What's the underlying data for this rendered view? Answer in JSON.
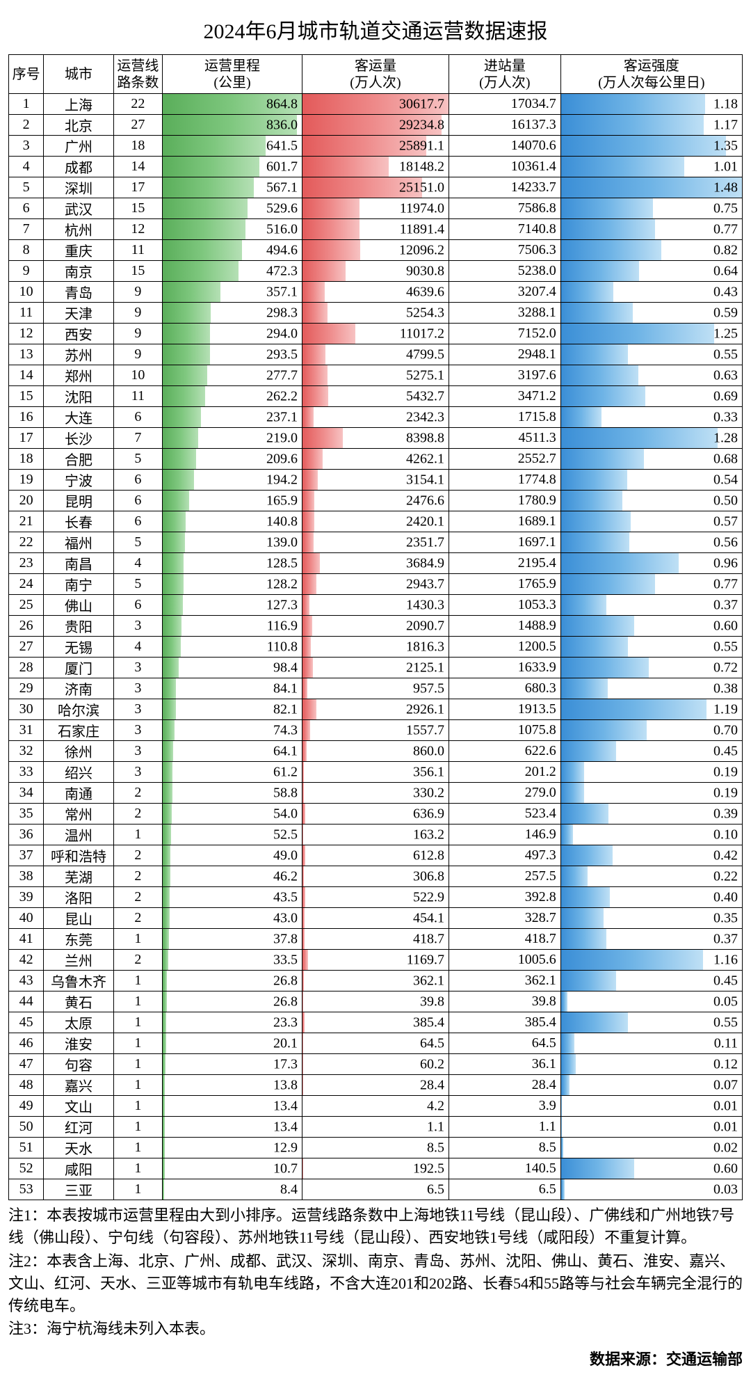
{
  "title": "2024年6月城市轨道交通运营数据速报",
  "columns": [
    "序号",
    "城市",
    "运营线\n路条数",
    "运营里程\n(公里)",
    "客运量\n(万人次)",
    "进站量\n(万人次)",
    "客运强度\n(万人次每公里日)"
  ],
  "bar_colors": {
    "green": "#5aae5a",
    "red": "#e35a5a",
    "blue": "#3a8ed6"
  },
  "max": {
    "mileage": 864.8,
    "passengers": 30617.7,
    "intensity": 1.48
  },
  "rows": [
    {
      "n": 1,
      "city": "上海",
      "lines": 22,
      "mileage": 864.8,
      "pass": 30617.7,
      "entry": "17034.7",
      "int": 1.18
    },
    {
      "n": 2,
      "city": "北京",
      "lines": 27,
      "mileage": 836.0,
      "pass": 29234.8,
      "entry": "16137.3",
      "int": 1.17
    },
    {
      "n": 3,
      "city": "广州",
      "lines": 18,
      "mileage": 641.5,
      "pass": 25891.1,
      "entry": "14070.6",
      "int": 1.35
    },
    {
      "n": 4,
      "city": "成都",
      "lines": 14,
      "mileage": 601.7,
      "pass": 18148.2,
      "entry": "10361.4",
      "int": 1.01
    },
    {
      "n": 5,
      "city": "深圳",
      "lines": 17,
      "mileage": 567.1,
      "pass": 25151.0,
      "entry": "14233.7",
      "int": 1.48
    },
    {
      "n": 6,
      "city": "武汉",
      "lines": 15,
      "mileage": 529.6,
      "pass": 11974.0,
      "entry": "7586.8",
      "int": 0.75
    },
    {
      "n": 7,
      "city": "杭州",
      "lines": 12,
      "mileage": 516.0,
      "pass": 11891.4,
      "entry": "7140.8",
      "int": 0.77
    },
    {
      "n": 8,
      "city": "重庆",
      "lines": 11,
      "mileage": 494.6,
      "pass": 12096.2,
      "entry": "7506.3",
      "int": 0.82
    },
    {
      "n": 9,
      "city": "南京",
      "lines": 15,
      "mileage": 472.3,
      "pass": 9030.8,
      "entry": "5238.0",
      "int": 0.64
    },
    {
      "n": 10,
      "city": "青岛",
      "lines": 9,
      "mileage": 357.1,
      "pass": 4639.6,
      "entry": "3207.4",
      "int": 0.43
    },
    {
      "n": 11,
      "city": "天津",
      "lines": 9,
      "mileage": 298.3,
      "pass": 5254.3,
      "entry": "3288.1",
      "int": 0.59
    },
    {
      "n": 12,
      "city": "西安",
      "lines": 9,
      "mileage": 294.0,
      "pass": 11017.2,
      "entry": "7152.0",
      "int": 1.25
    },
    {
      "n": 13,
      "city": "苏州",
      "lines": 9,
      "mileage": 293.5,
      "pass": 4799.5,
      "entry": "2948.1",
      "int": 0.55
    },
    {
      "n": 14,
      "city": "郑州",
      "lines": 10,
      "mileage": 277.7,
      "pass": 5275.1,
      "entry": "3197.6",
      "int": 0.63
    },
    {
      "n": 15,
      "city": "沈阳",
      "lines": 11,
      "mileage": 262.2,
      "pass": 5432.7,
      "entry": "3471.2",
      "int": 0.69
    },
    {
      "n": 16,
      "city": "大连",
      "lines": 6,
      "mileage": 237.1,
      "pass": 2342.3,
      "entry": "1715.8",
      "int": 0.33
    },
    {
      "n": 17,
      "city": "长沙",
      "lines": 7,
      "mileage": 219.0,
      "pass": 8398.8,
      "entry": "4511.3",
      "int": 1.28
    },
    {
      "n": 18,
      "city": "合肥",
      "lines": 5,
      "mileage": 209.6,
      "pass": 4262.1,
      "entry": "2552.7",
      "int": 0.68
    },
    {
      "n": 19,
      "city": "宁波",
      "lines": 6,
      "mileage": 194.2,
      "pass": 3154.1,
      "entry": "1774.8",
      "int": 0.54
    },
    {
      "n": 20,
      "city": "昆明",
      "lines": 6,
      "mileage": 165.9,
      "pass": 2476.6,
      "entry": "1780.9",
      "int": 0.5
    },
    {
      "n": 21,
      "city": "长春",
      "lines": 6,
      "mileage": 140.8,
      "pass": 2420.1,
      "entry": "1689.1",
      "int": 0.57
    },
    {
      "n": 22,
      "city": "福州",
      "lines": 5,
      "mileage": 139.0,
      "pass": 2351.7,
      "entry": "1697.1",
      "int": 0.56
    },
    {
      "n": 23,
      "city": "南昌",
      "lines": 4,
      "mileage": 128.5,
      "pass": 3684.9,
      "entry": "2195.4",
      "int": 0.96
    },
    {
      "n": 24,
      "city": "南宁",
      "lines": 5,
      "mileage": 128.2,
      "pass": 2943.7,
      "entry": "1765.9",
      "int": 0.77
    },
    {
      "n": 25,
      "city": "佛山",
      "lines": 6,
      "mileage": 127.3,
      "pass": 1430.3,
      "entry": "1053.3",
      "int": 0.37
    },
    {
      "n": 26,
      "city": "贵阳",
      "lines": 3,
      "mileage": 116.9,
      "pass": 2090.7,
      "entry": "1488.9",
      "int": 0.6
    },
    {
      "n": 27,
      "city": "无锡",
      "lines": 4,
      "mileage": 110.8,
      "pass": 1816.3,
      "entry": "1200.5",
      "int": 0.55
    },
    {
      "n": 28,
      "city": "厦门",
      "lines": 3,
      "mileage": 98.4,
      "pass": 2125.1,
      "entry": "1633.9",
      "int": 0.72
    },
    {
      "n": 29,
      "city": "济南",
      "lines": 3,
      "mileage": 84.1,
      "pass": 957.5,
      "entry": "680.3",
      "int": 0.38
    },
    {
      "n": 30,
      "city": "哈尔滨",
      "lines": 3,
      "mileage": 82.1,
      "pass": 2926.1,
      "entry": "1913.5",
      "int": 1.19
    },
    {
      "n": 31,
      "city": "石家庄",
      "lines": 3,
      "mileage": 74.3,
      "pass": 1557.7,
      "entry": "1075.8",
      "int": 0.7
    },
    {
      "n": 32,
      "city": "徐州",
      "lines": 3,
      "mileage": 64.1,
      "pass": 860.0,
      "entry": "622.6",
      "int": 0.45
    },
    {
      "n": 33,
      "city": "绍兴",
      "lines": 3,
      "mileage": 61.2,
      "pass": 356.1,
      "entry": "201.2",
      "int": 0.19
    },
    {
      "n": 34,
      "city": "南通",
      "lines": 2,
      "mileage": 58.8,
      "pass": 330.2,
      "entry": "279.0",
      "int": 0.19
    },
    {
      "n": 35,
      "city": "常州",
      "lines": 2,
      "mileage": 54.0,
      "pass": 636.9,
      "entry": "523.4",
      "int": 0.39
    },
    {
      "n": 36,
      "city": "温州",
      "lines": 1,
      "mileage": 52.5,
      "pass": 163.2,
      "entry": "146.9",
      "int": 0.1
    },
    {
      "n": 37,
      "city": "呼和浩特",
      "lines": 2,
      "mileage": 49.0,
      "pass": 612.8,
      "entry": "497.3",
      "int": 0.42
    },
    {
      "n": 38,
      "city": "芜湖",
      "lines": 2,
      "mileage": 46.2,
      "pass": 306.8,
      "entry": "257.5",
      "int": 0.22
    },
    {
      "n": 39,
      "city": "洛阳",
      "lines": 2,
      "mileage": 43.5,
      "pass": 522.9,
      "entry": "392.8",
      "int": 0.4
    },
    {
      "n": 40,
      "city": "昆山",
      "lines": 2,
      "mileage": 43.0,
      "pass": 454.1,
      "entry": "328.7",
      "int": 0.35
    },
    {
      "n": 41,
      "city": "东莞",
      "lines": 1,
      "mileage": 37.8,
      "pass": 418.7,
      "entry": "418.7",
      "int": 0.37
    },
    {
      "n": 42,
      "city": "兰州",
      "lines": 2,
      "mileage": 33.5,
      "pass": 1169.7,
      "entry": "1005.6",
      "int": 1.16
    },
    {
      "n": 43,
      "city": "乌鲁木齐",
      "lines": 1,
      "mileage": 26.8,
      "pass": 362.1,
      "entry": "362.1",
      "int": 0.45
    },
    {
      "n": 44,
      "city": "黄石",
      "lines": 1,
      "mileage": 26.8,
      "pass": 39.8,
      "entry": "39.8",
      "int": 0.05
    },
    {
      "n": 45,
      "city": "太原",
      "lines": 1,
      "mileage": 23.3,
      "pass": 385.4,
      "entry": "385.4",
      "int": 0.55
    },
    {
      "n": 46,
      "city": "淮安",
      "lines": 1,
      "mileage": 20.1,
      "pass": 64.5,
      "entry": "64.5",
      "int": 0.11
    },
    {
      "n": 47,
      "city": "句容",
      "lines": 1,
      "mileage": 17.3,
      "pass": 60.2,
      "entry": "36.1",
      "int": 0.12
    },
    {
      "n": 48,
      "city": "嘉兴",
      "lines": 1,
      "mileage": 13.8,
      "pass": 28.4,
      "entry": "28.4",
      "int": 0.07
    },
    {
      "n": 49,
      "city": "文山",
      "lines": 1,
      "mileage": 13.4,
      "pass": 4.2,
      "entry": "3.9",
      "int": 0.01
    },
    {
      "n": 50,
      "city": "红河",
      "lines": 1,
      "mileage": 13.4,
      "pass": 1.1,
      "entry": "1.1",
      "int": 0.01
    },
    {
      "n": 51,
      "city": "天水",
      "lines": 1,
      "mileage": 12.9,
      "pass": 8.5,
      "entry": "8.5",
      "int": 0.02
    },
    {
      "n": 52,
      "city": "咸阳",
      "lines": 1,
      "mileage": 10.7,
      "pass": 192.5,
      "entry": "140.5",
      "int": 0.6
    },
    {
      "n": 53,
      "city": "三亚",
      "lines": 1,
      "mileage": 8.4,
      "pass": 6.5,
      "entry": "6.5",
      "int": 0.03
    }
  ],
  "notes": [
    "注1：本表按城市运营里程由大到小排序。运营线路条数中上海地铁11号线（昆山段）、广佛线和广州地铁7号线（佛山段）、宁句线（句容段）、苏州地铁11号线（昆山段）、西安地铁1号线（咸阳段）不重复计算。",
    "注2：本表含上海、北京、广州、成都、武汉、深圳、南京、青岛、苏州、沈阳、佛山、黄石、淮安、嘉兴、文山、红河、天水、三亚等城市有轨电车线路，不含大连201和202路、长春54和55路等与社会车辆完全混行的传统电车。",
    "注3：海宁杭海线未列入本表。"
  ],
  "source": "数据来源：交通运输部"
}
